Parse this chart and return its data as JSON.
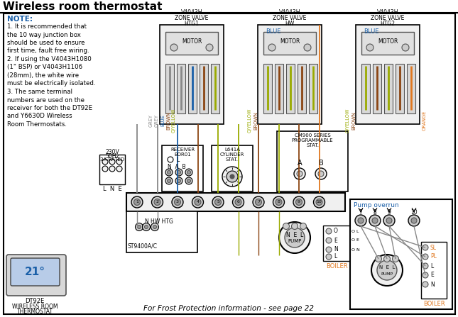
{
  "title": "Wireless room thermostat",
  "bg": "#ffffff",
  "black": "#000000",
  "blue": "#1a5fa8",
  "orange": "#e07820",
  "gray": "#888888",
  "brown": "#8B4513",
  "gyellow": "#9aaa00",
  "darkgray": "#555555",
  "lightgray": "#cccccc",
  "verylightgray": "#f0f0f0",
  "note_lines": [
    "NOTE:",
    "1. It is recommended that",
    "the 10 way junction box",
    "should be used to ensure",
    "first time, fault free wiring.",
    "2. If using the V4043H1080",
    "(1\" BSP) or V4043H1106",
    "(28mm), the white wire",
    "must be electrically isolated.",
    "3. The same terminal",
    "numbers are used on the",
    "receiver for both the DT92E",
    "and Y6630D Wireless",
    "Room Thermostats."
  ],
  "footer": "For Frost Protection information - see page 22"
}
